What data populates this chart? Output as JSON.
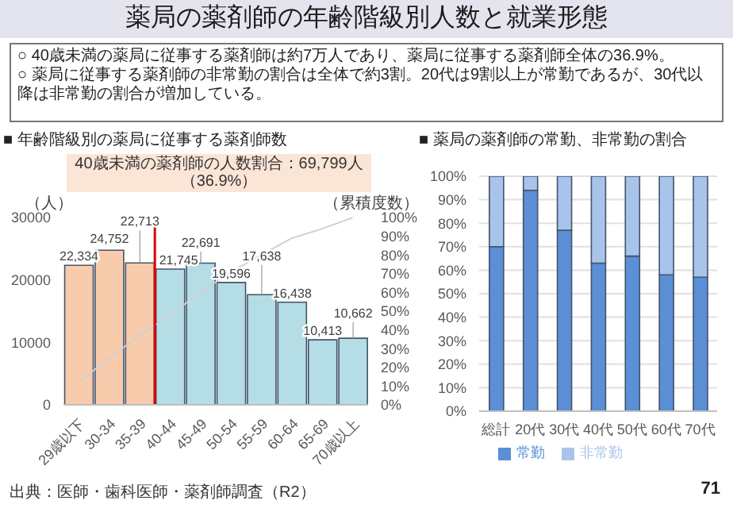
{
  "chart_data": [
    {
      "type": "bar",
      "title": "薬局の薬剤師の年齢階級別人数と就業形態",
      "subtitle": "■ 年齢階級別の薬局に従事する薬剤師数",
      "annotations": [
        "○ 40歳未満の薬局に従事する薬剤師は約7万人であり、薬局に従事する薬剤師全体の36.9%。",
        "○ 薬局に従事する薬剤師の非常勤の割合は全体で約3割。20代は9割以上が常勤であるが、30代以降は非常勤の割合が増加している。",
        "40歳未満の薬剤師の人数割合：69,799人（36.9%）",
        "出典：医師・歯科医師・薬剤師調査（R2）",
        "71"
      ],
      "ylabel": "（人）",
      "y2label": "（累積度数）",
      "categories": [
        "29歳以下",
        "30-34",
        "35-39",
        "40-44",
        "45-49",
        "50-54",
        "55-59",
        "60-64",
        "65-69",
        "70歳以上"
      ],
      "series": [
        {
          "type": "bar",
          "colors": [
            "#f8cbad",
            "#f8cbad",
            "#f8cbad",
            "#b4dde6",
            "#b4dde6",
            "#b4dde6",
            "#b4dde6",
            "#b4dde6",
            "#b4dde6",
            "#b4dde6"
          ],
          "values": [
            22334,
            24752,
            22713,
            21745,
            22691,
            19596,
            17638,
            16438,
            10413,
            10662
          ],
          "value_labels": [
            "22,334",
            "24,752",
            "22,713",
            "21,745",
            "22,691",
            "19,596",
            "17,638",
            "16,438",
            "10,413",
            "10,662"
          ]
        },
        {
          "type": "line",
          "axis": "y2",
          "color": "#d0d0d0",
          "values": [
            12,
            25,
            37,
            48,
            60,
            71,
            80,
            89,
            94,
            100
          ]
        }
      ],
      "ylim": [
        0,
        30000
      ],
      "yticks": [
        0,
        10000,
        20000,
        30000
      ],
      "ref_lines": [
        {
          "axis": "x",
          "value": "35-39",
          "color": "#e00000"
        }
      ],
      "y2lim": [
        0,
        100
      ],
      "y2ticks": [
        {
          "value": 0,
          "label": "0%"
        },
        {
          "value": 10,
          "label": "10%"
        },
        {
          "value": 20,
          "label": "20%"
        },
        {
          "value": 30,
          "label": "30%"
        },
        {
          "value": 40,
          "label": "40%"
        },
        {
          "value": 50,
          "label": "50%"
        },
        {
          "value": 60,
          "label": "60%"
        },
        {
          "value": 70,
          "label": "70%"
        },
        {
          "value": 80,
          "label": "80%"
        },
        {
          "value": 90,
          "label": "90%"
        },
        {
          "value": 100,
          "label": "100%"
        }
      ]
    },
    {
      "type": "bar",
      "stacked": true,
      "title": "■ 薬局の薬剤師の常勤、非常勤の割合",
      "categories": [
        "総計",
        "20代",
        "30代",
        "40代",
        "50代",
        "60代",
        "70代"
      ],
      "series": [
        {
          "name": "常勤",
          "color": "#5b8fd6",
          "values": [
            70,
            94,
            77,
            63,
            66,
            58,
            57
          ]
        },
        {
          "name": "非常勤",
          "color": "#a9c4ea",
          "values": [
            30,
            6,
            23,
            37,
            34,
            42,
            43
          ]
        }
      ],
      "ylim": [
        0,
        100
      ],
      "yticks": [
        {
          "value": 0,
          "label": "0%"
        },
        {
          "value": 10,
          "label": "10%"
        },
        {
          "value": 20,
          "label": "20%"
        },
        {
          "value": 30,
          "label": "30%"
        },
        {
          "value": 40,
          "label": "40%"
        },
        {
          "value": 50,
          "label": "50%"
        },
        {
          "value": 60,
          "label": "60%"
        },
        {
          "value": 70,
          "label": "70%"
        },
        {
          "value": 80,
          "label": "80%"
        },
        {
          "value": 90,
          "label": "90%"
        },
        {
          "value": 100,
          "label": "100%"
        }
      ],
      "grid": "y",
      "legend": "bottom"
    }
  ]
}
